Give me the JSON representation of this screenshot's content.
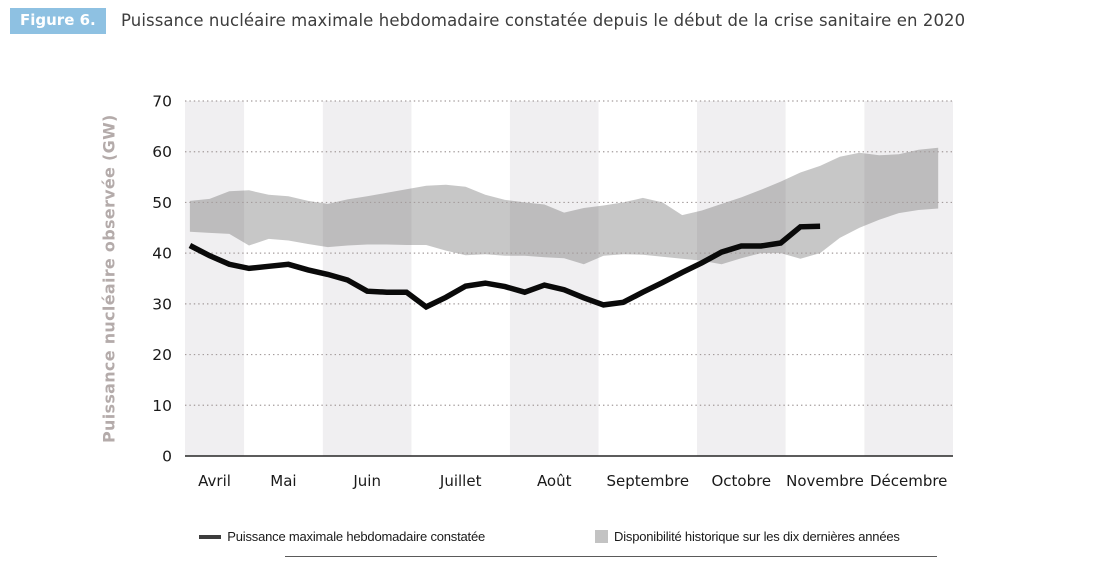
{
  "header": {
    "figure_label": "Figure 6.",
    "title": "Puissance nucléaire maximale hebdomadaire constatée depuis le début de la crise sanitaire en 2020"
  },
  "colors": {
    "badge_background": "#8ec1e2",
    "badge_text": "#ffffff",
    "title_text": "#3d3d3d",
    "ylabel_text": "#b4abaa",
    "month_stripe": "#f0eff1",
    "gridline": "#a49c9c",
    "axis_line": "#262626",
    "band_fill": "rgba(84,84,84,0.33)",
    "band_legend_swatch": "#c3c3c3",
    "line_stroke": "#0a0a0a",
    "line_legend_swatch": "#3d3d3d",
    "tick_text": "#1a1a1a"
  },
  "chart_data": {
    "type": "line",
    "title": "Puissance nucléaire maximale hebdomadaire constatée depuis le début de la crise sanitaire en 2020",
    "xlabel": "",
    "ylabel": "Puissance nucléaire observée (GW)",
    "ylim": [
      0,
      70
    ],
    "yticks": [
      0,
      10,
      20,
      30,
      40,
      50,
      60,
      70
    ],
    "grid": "horizontal-dotted",
    "legend_position": "bottom",
    "x_unit": "semaine",
    "x_months": [
      {
        "label": "Avril",
        "weeks": 3.0,
        "shaded": true
      },
      {
        "label": "Mai",
        "weeks": 4.0,
        "shaded": false
      },
      {
        "label": "Juin",
        "weeks": 4.5,
        "shaded": true
      },
      {
        "label": "Juillet",
        "weeks": 5.0,
        "shaded": false
      },
      {
        "label": "Août",
        "weeks": 4.5,
        "shaded": true
      },
      {
        "label": "Septembre",
        "weeks": 5.0,
        "shaded": false
      },
      {
        "label": "Octobre",
        "weeks": 4.5,
        "shaded": true
      },
      {
        "label": "Novembre",
        "weeks": 4.0,
        "shaded": false
      },
      {
        "label": "Décembre",
        "weeks": 4.5,
        "shaded": true
      }
    ],
    "series": [
      {
        "name": "Puissance maximale hebdomadaire constatée",
        "type": "line",
        "unit": "GW",
        "start_week_offset": 0.25,
        "values": [
          41.5,
          39.5,
          37.8,
          37.0,
          37.4,
          37.8,
          36.7,
          35.8,
          34.7,
          32.5,
          32.3,
          32.3,
          29.4,
          31.3,
          33.5,
          34.1,
          33.4,
          32.3,
          33.7,
          32.8,
          31.2,
          29.8,
          30.3,
          32.3,
          34.2,
          36.2,
          38.1,
          40.2,
          41.4,
          41.4,
          42.0,
          45.2,
          45.3
        ]
      },
      {
        "name": "Disponibilité historique sur les dix dernières années",
        "type": "band",
        "unit": "GW",
        "start_week_offset": 0.25,
        "max": [
          50.3,
          50.7,
          52.2,
          52.4,
          51.5,
          51.2,
          50.3,
          49.7,
          50.6,
          51.2,
          51.9,
          52.6,
          53.3,
          53.5,
          53.1,
          51.5,
          50.5,
          50.0,
          49.6,
          48.0,
          48.9,
          49.4,
          50.0,
          50.9,
          50.0,
          47.5,
          48.4,
          49.7,
          51.0,
          52.5,
          54.1,
          55.9,
          57.2,
          59.0,
          59.8,
          59.3,
          59.5,
          60.4,
          60.8
        ],
        "min": [
          44.2,
          44.0,
          43.8,
          41.5,
          42.8,
          42.5,
          41.8,
          41.2,
          41.5,
          41.7,
          41.7,
          41.6,
          41.6,
          40.5,
          39.6,
          39.8,
          39.5,
          39.5,
          39.2,
          39.0,
          37.8,
          39.5,
          39.8,
          39.7,
          39.3,
          38.9,
          38.5,
          37.8,
          39.0,
          40.0,
          40.0,
          38.9,
          40.0,
          43.0,
          45.0,
          46.6,
          47.9,
          48.5,
          48.8
        ]
      }
    ]
  }
}
